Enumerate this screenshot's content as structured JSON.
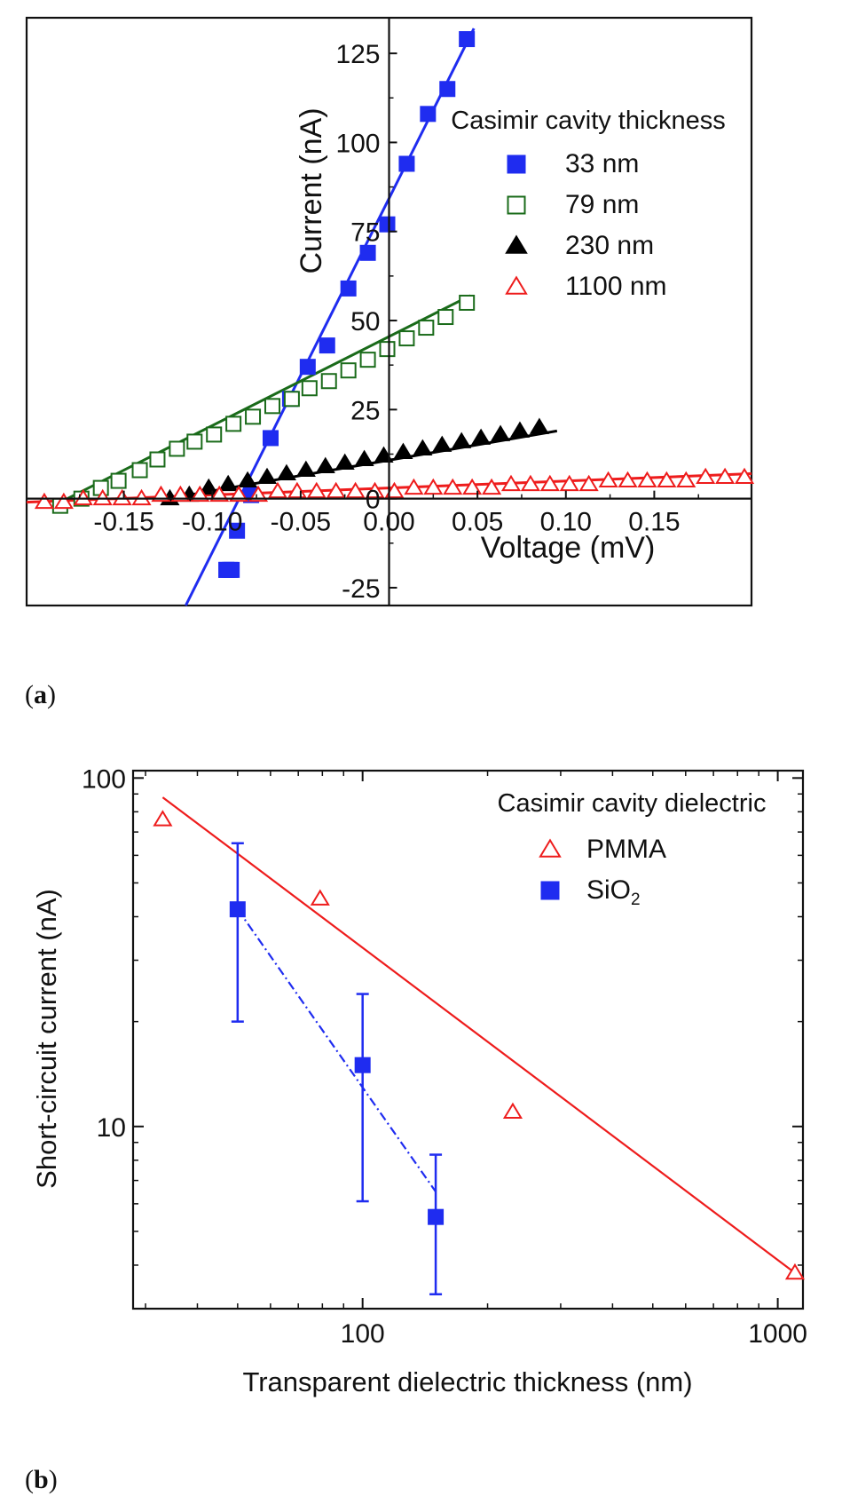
{
  "panels": {
    "a": {
      "label_open": "(",
      "label_letter": "a",
      "label_close": ")"
    },
    "b": {
      "label_open": "(",
      "label_letter": "b",
      "label_close": ")"
    }
  },
  "chart_data": [
    {
      "type": "scatter",
      "xlabel": "Voltage (mV)",
      "ylabel": "Current (nA)",
      "xlim": [
        -0.205,
        0.205
      ],
      "ylim": [
        -30,
        135
      ],
      "x_ticks": [
        "-0.15",
        "-0.10",
        "-0.05",
        "0.00",
        "0.05",
        "0.10",
        "0.15"
      ],
      "x_tick_values": [
        -0.15,
        -0.1,
        -0.05,
        0.0,
        0.05,
        0.1,
        0.15
      ],
      "y_ticks": [
        "-25",
        "0",
        "25",
        "50",
        "75",
        "100",
        "125"
      ],
      "y_tick_values": [
        -25,
        0,
        25,
        50,
        75,
        100,
        125
      ],
      "axes_cross_at_origin": true,
      "grid": false,
      "legend_title": "Casimir cavity thickness",
      "legend_position": "upper-right",
      "series": [
        {
          "name": "33 nm",
          "marker": "square-filled",
          "color": "#1f2cf0",
          "fit_line": {
            "x": [
              -0.115,
              0.048
            ],
            "y": [
              -30,
              132
            ]
          },
          "points": [
            [
              -0.092,
              -20
            ],
            [
              -0.09,
              -20
            ],
            [
              -0.089,
              -20
            ],
            [
              -0.092,
              -20
            ],
            [
              -0.086,
              -9
            ],
            [
              -0.078,
              1
            ],
            [
              -0.067,
              17
            ],
            [
              -0.056,
              28
            ],
            [
              -0.046,
              37
            ],
            [
              -0.035,
              43
            ],
            [
              -0.023,
              59
            ],
            [
              -0.012,
              69
            ],
            [
              -0.001,
              77
            ],
            [
              0.01,
              94
            ],
            [
              0.022,
              108
            ],
            [
              0.033,
              115
            ],
            [
              0.044,
              129
            ]
          ]
        },
        {
          "name": "79 nm",
          "marker": "square-open",
          "color": "#1a6b1a",
          "fit_line": {
            "x": [
              -0.19,
              0.046
            ],
            "y": [
              -2,
              57
            ]
          },
          "points": [
            [
              -0.186,
              -2
            ],
            [
              -0.174,
              0
            ],
            [
              -0.163,
              3
            ],
            [
              -0.153,
              5
            ],
            [
              -0.141,
              8
            ],
            [
              -0.131,
              11
            ],
            [
              -0.12,
              14
            ],
            [
              -0.11,
              16
            ],
            [
              -0.099,
              18
            ],
            [
              -0.088,
              21
            ],
            [
              -0.077,
              23
            ],
            [
              -0.066,
              26
            ],
            [
              -0.055,
              28
            ],
            [
              -0.045,
              31
            ],
            [
              -0.034,
              33
            ],
            [
              -0.023,
              36
            ],
            [
              -0.012,
              39
            ],
            [
              -0.001,
              42
            ],
            [
              0.01,
              45
            ],
            [
              0.021,
              48
            ],
            [
              0.032,
              51
            ],
            [
              0.044,
              55
            ]
          ]
        },
        {
          "name": "230 nm",
          "marker": "triangle-filled",
          "color": "#000000",
          "fit_line": {
            "x": [
              -0.125,
              0.095
            ],
            "y": [
              0,
              19
            ]
          },
          "points": [
            [
              -0.124,
              0
            ],
            [
              -0.113,
              1
            ],
            [
              -0.102,
              3
            ],
            [
              -0.091,
              4
            ],
            [
              -0.08,
              5
            ],
            [
              -0.069,
              6
            ],
            [
              -0.058,
              7
            ],
            [
              -0.047,
              8
            ],
            [
              -0.036,
              9
            ],
            [
              -0.025,
              10
            ],
            [
              -0.014,
              11
            ],
            [
              -0.003,
              12
            ],
            [
              0.008,
              13
            ],
            [
              0.019,
              14
            ],
            [
              0.03,
              15
            ],
            [
              0.041,
              16
            ],
            [
              0.052,
              17
            ],
            [
              0.063,
              18
            ],
            [
              0.074,
              19
            ],
            [
              0.085,
              20
            ]
          ]
        },
        {
          "name": "1100 nm",
          "marker": "triangle-open",
          "color": "#ee1c1c",
          "fit_line": {
            "x": [
              -0.205,
              0.205
            ],
            "y": [
              -1,
              7
            ]
          },
          "points": [
            [
              -0.195,
              -1
            ],
            [
              -0.184,
              -1
            ],
            [
              -0.173,
              0
            ],
            [
              -0.162,
              0
            ],
            [
              -0.151,
              0
            ],
            [
              -0.14,
              0
            ],
            [
              -0.129,
              1
            ],
            [
              -0.118,
              1
            ],
            [
              -0.107,
              1
            ],
            [
              -0.096,
              1
            ],
            [
              -0.085,
              1
            ],
            [
              -0.074,
              1
            ],
            [
              -0.063,
              2
            ],
            [
              -0.052,
              2
            ],
            [
              -0.041,
              2
            ],
            [
              -0.03,
              2
            ],
            [
              -0.019,
              2
            ],
            [
              -0.008,
              2
            ],
            [
              0.003,
              2
            ],
            [
              0.014,
              3
            ],
            [
              0.025,
              3
            ],
            [
              0.036,
              3
            ],
            [
              0.047,
              3
            ],
            [
              0.058,
              3
            ],
            [
              0.069,
              4
            ],
            [
              0.08,
              4
            ],
            [
              0.091,
              4
            ],
            [
              0.102,
              4
            ],
            [
              0.113,
              4
            ],
            [
              0.124,
              5
            ],
            [
              0.135,
              5
            ],
            [
              0.146,
              5
            ],
            [
              0.157,
              5
            ],
            [
              0.168,
              5
            ],
            [
              0.179,
              6
            ],
            [
              0.19,
              6
            ],
            [
              0.201,
              6
            ]
          ]
        }
      ]
    },
    {
      "type": "scatter",
      "xlabel": "Transparent dielectric thickness (nm)",
      "ylabel": "Short-circuit current (nA)",
      "xscale": "log",
      "yscale": "log",
      "xlim": [
        28,
        1150
      ],
      "ylim": [
        3,
        105
      ],
      "x_ticks": [
        "100",
        "1000"
      ],
      "x_tick_values": [
        100,
        1000
      ],
      "y_ticks": [
        "10",
        "100"
      ],
      "y_tick_values": [
        10,
        100
      ],
      "grid": false,
      "legend_title": "Casimir cavity dielectric",
      "legend_position": "upper-right",
      "series": [
        {
          "name": "PMMA",
          "marker": "triangle-open",
          "color": "#ee1c1c",
          "line_style": "solid",
          "fit_line": {
            "x": [
              33,
              1100
            ],
            "y": [
              88,
              3.8
            ]
          },
          "points": [
            [
              33,
              76
            ],
            [
              79,
              45
            ],
            [
              230,
              11
            ],
            [
              1100,
              3.8
            ]
          ]
        },
        {
          "name": "SiO",
          "name_subscript": "2",
          "marker": "square-filled",
          "color": "#1f2cf0",
          "line_style": "dash-dot",
          "fit_line": {
            "x": [
              50,
              150
            ],
            "y": [
              42,
              6.5
            ]
          },
          "points": [
            [
              50,
              42
            ],
            [
              100,
              15
            ],
            [
              150,
              5.5
            ]
          ],
          "error_low": [
            20,
            6.1,
            3.3
          ],
          "error_high": [
            65,
            24,
            8.3
          ]
        }
      ]
    }
  ]
}
